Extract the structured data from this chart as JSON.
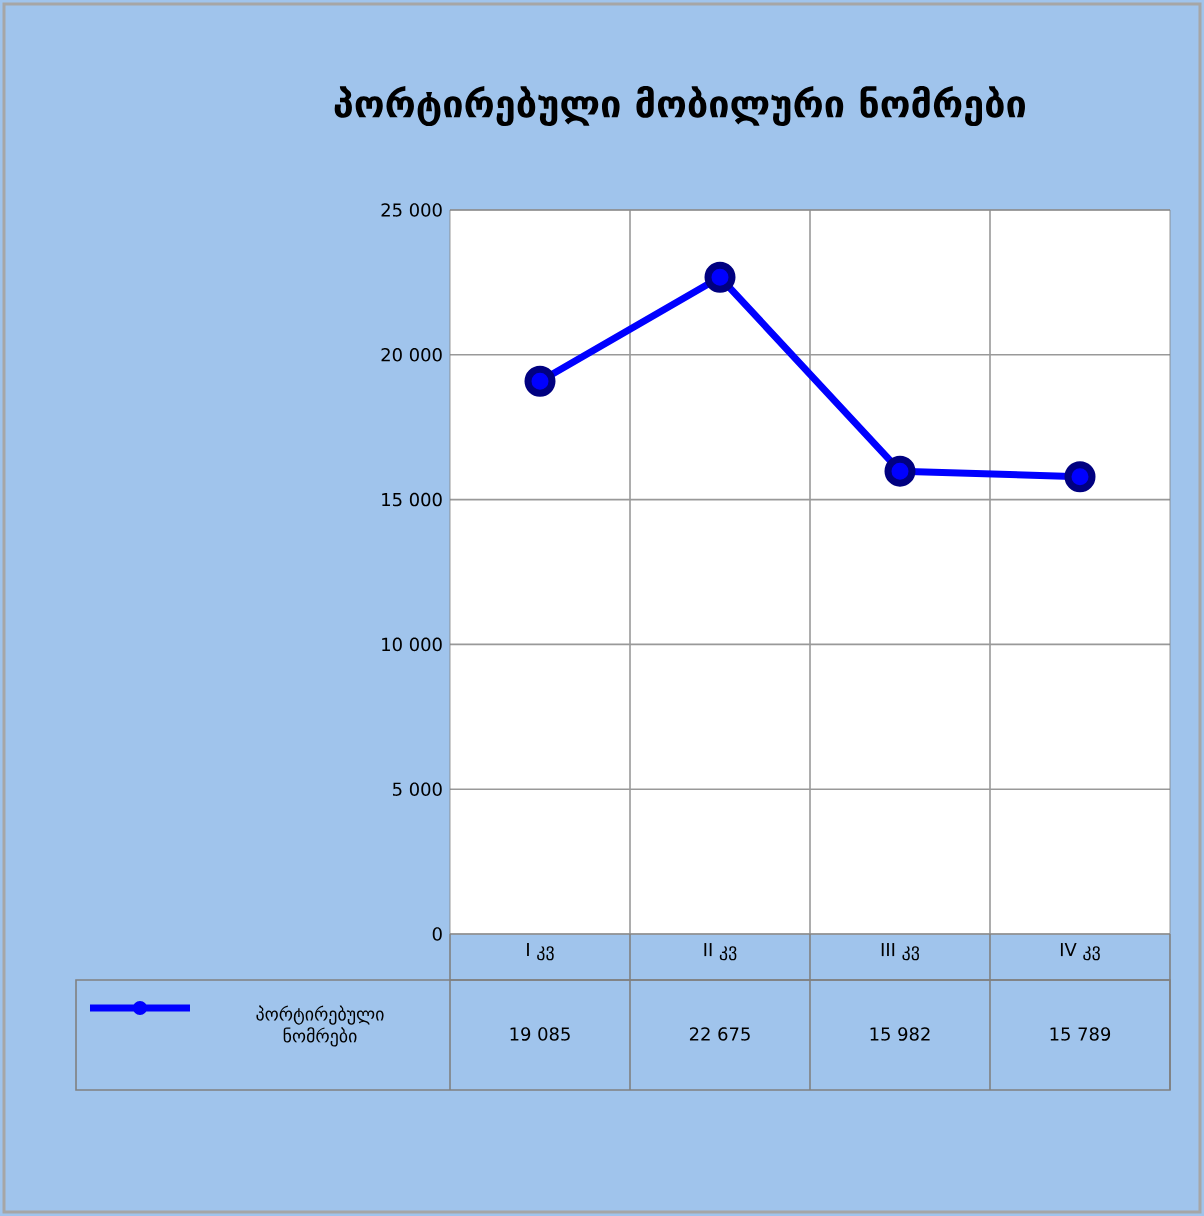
{
  "chart_data": {
    "type": "line",
    "title": "პორტირებული  მობილური ნომრები",
    "categories": [
      "I კვ",
      "II კვ",
      "III კვ",
      "IV კვ"
    ],
    "series": [
      {
        "name": "პორტირებული ნომრები",
        "color": "#0000ff",
        "values": [
          19085,
          22675,
          15982,
          15789
        ],
        "value_labels": [
          "19 085",
          "22 675",
          "15 982",
          "15 789"
        ]
      }
    ],
    "ylim": [
      0,
      25000
    ],
    "yticks": [
      0,
      {
        "value": 5000,
        "label": "5 000"
      },
      {
        "value": 10000,
        "label": "10 000"
      },
      {
        "value": 15000,
        "label": "15 000"
      },
      {
        "value": 20000,
        "label": "20 000"
      },
      {
        "value": 25000,
        "label": "25 000"
      }
    ],
    "grid": true,
    "legend": "bottom",
    "marker": "circle",
    "line_style": "solid"
  }
}
